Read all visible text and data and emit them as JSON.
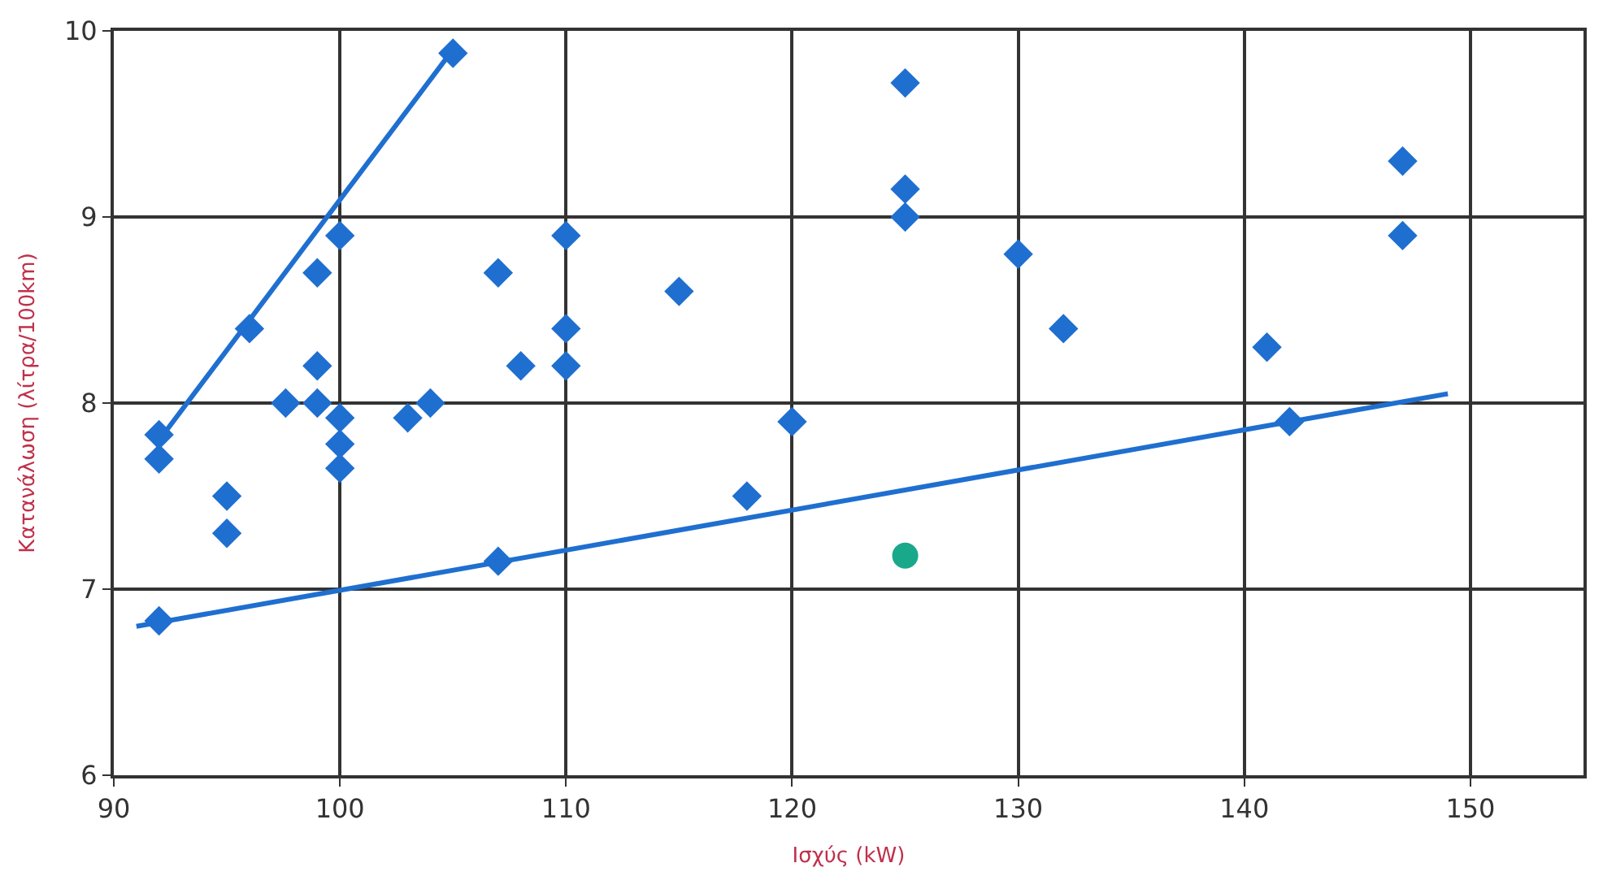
{
  "chart_data": {
    "type": "scatter",
    "xlabel": "Ισχύς (kW)",
    "ylabel": "Κατανάλωση (λίτρα/100km)",
    "xlim": [
      90,
      155
    ],
    "xticks": [
      90,
      100,
      110,
      120,
      130,
      140,
      150
    ],
    "ylim": [
      6,
      10
    ],
    "yticks": [
      6,
      7,
      8,
      9,
      10
    ],
    "grid": true,
    "marker": "diamond",
    "series": [
      {
        "color": "#1f6fd0",
        "x": [
          92,
          92,
          92,
          95,
          95,
          96,
          97.6,
          99,
          99,
          99,
          100,
          100,
          100,
          100,
          103,
          104,
          105,
          107,
          107,
          108,
          110,
          110,
          110,
          115,
          118,
          120,
          125,
          125,
          125,
          130,
          132,
          141,
          142,
          147,
          147
        ],
        "values": [
          7.83,
          7.7,
          6.83,
          7.5,
          7.3,
          8.4,
          8.0,
          8.7,
          8.2,
          8.0,
          8.9,
          7.92,
          7.78,
          7.65,
          7.92,
          8.0,
          9.88,
          8.7,
          7.15,
          8.2,
          8.9,
          8.4,
          8.2,
          8.6,
          7.5,
          7.9,
          9.72,
          9.15,
          9.0,
          8.8,
          8.4,
          8.3,
          7.9,
          9.3,
          8.9
        ]
      },
      {
        "marker": "circle",
        "color": "#1aa88a",
        "x": [
          125
        ],
        "values": [
          7.18
        ]
      },
      {
        "type": "line",
        "marker": "none",
        "color": "#1f6fd0",
        "x": [
          92,
          105
        ],
        "values": [
          7.8,
          9.9
        ]
      },
      {
        "type": "line",
        "marker": "none",
        "color": "#1f6fd0",
        "x": [
          91,
          149
        ],
        "values": [
          6.8,
          8.05
        ]
      }
    ]
  }
}
